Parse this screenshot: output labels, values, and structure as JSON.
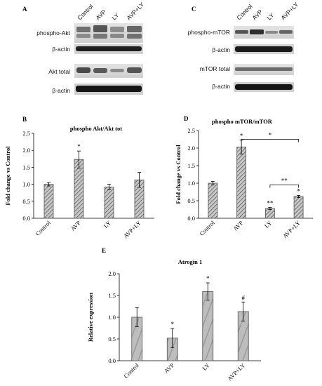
{
  "panels": {
    "A": {
      "letter": "A",
      "lanes": [
        "Control",
        "AVP",
        "LY",
        "AVP+LY"
      ],
      "rows": [
        "phospho-Akt",
        "β-actin",
        "Akt total",
        "β-actin"
      ]
    },
    "C": {
      "letter": "C",
      "lanes": [
        "Control",
        "AVP",
        "LY",
        "AVP+LY"
      ],
      "rows": [
        "phospho-mTOR",
        "β-actin",
        "mTOR total",
        "β-actin"
      ]
    }
  },
  "chart_data": [
    {
      "id": "B",
      "letter": "B",
      "type": "bar",
      "title": "phospho Akt/Akt tot",
      "ylabel": "Fold change vs Control",
      "xlabel": "",
      "categories": [
        "Control",
        "AVP",
        "LY",
        "AVP+LY"
      ],
      "values": [
        1.0,
        1.73,
        0.92,
        1.13
      ],
      "errors": [
        0.05,
        0.25,
        0.08,
        0.22
      ],
      "annotations": [
        "",
        "*",
        "",
        ""
      ],
      "ylim": [
        0,
        2.5
      ],
      "yticks": [
        "0.0",
        "0.5",
        "1.0",
        "1.5",
        "2.0",
        "2.5"
      ],
      "brackets": [],
      "grid": false
    },
    {
      "id": "D",
      "letter": "D",
      "type": "bar",
      "title": "phospho mTOR/mTOR",
      "ylabel": "Fold change vs Control",
      "xlabel": "",
      "categories": [
        "Control",
        "AVP",
        "LY",
        "AVP+LY"
      ],
      "values": [
        1.0,
        2.03,
        0.28,
        0.62
      ],
      "errors": [
        0.05,
        0.2,
        0.03,
        0.03
      ],
      "annotations": [
        "",
        "*",
        "**",
        "*"
      ],
      "ylim": [
        0,
        2.5
      ],
      "yticks": [
        "0.0",
        "0.5",
        "1.0",
        "1.5",
        "2.0",
        "2.5"
      ],
      "brackets": [
        {
          "from": 1,
          "to": 3,
          "y": 2.25,
          "label": "*"
        },
        {
          "from": 2,
          "to": 3,
          "y": 0.95,
          "label": "**"
        }
      ],
      "grid": false
    },
    {
      "id": "E",
      "letter": "E",
      "type": "bar",
      "title": "Atrogin 1",
      "ylabel": "Relative expression",
      "xlabel": "",
      "categories": [
        "Control",
        "AVP",
        "LY",
        "AVP+LY"
      ],
      "values": [
        1.0,
        0.52,
        1.59,
        1.13
      ],
      "errors": [
        0.22,
        0.22,
        0.2,
        0.22
      ],
      "annotations": [
        "",
        "*",
        "*",
        "#"
      ],
      "ylim": [
        0,
        2.0
      ],
      "yticks": [
        "0.0",
        "0.5",
        "1.0",
        "1.5",
        "2.0"
      ],
      "brackets": [],
      "grid": false
    }
  ]
}
